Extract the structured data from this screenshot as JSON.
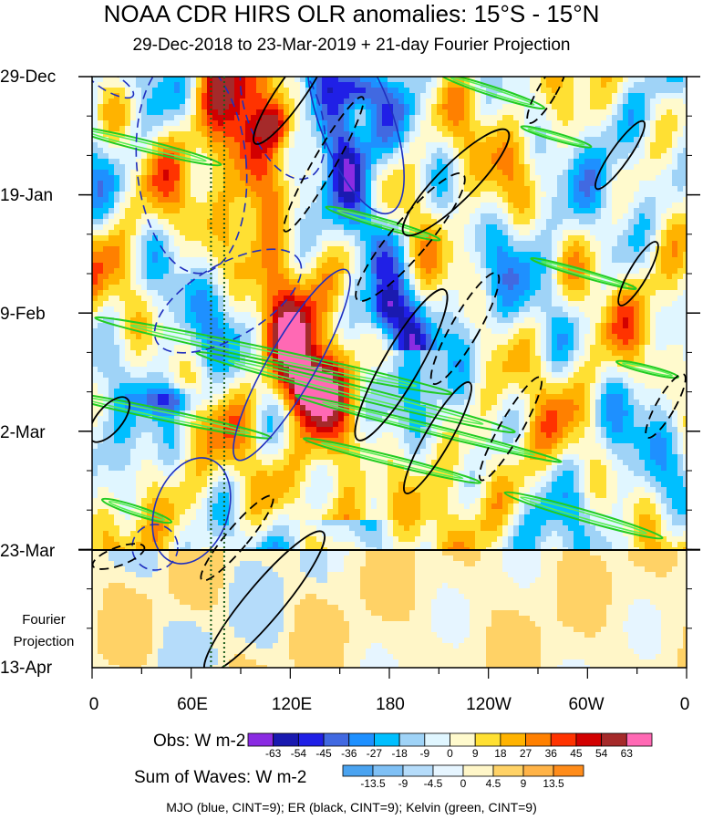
{
  "title": "NOAA CDR HIRS OLR anomalies: 15°S - 15°N",
  "subtitle": "29-Dec-2018 to 23-Mar-2019 + 21-day Fourier Projection",
  "fourier_label_line1": "Fourier",
  "fourier_label_line2": "Projection",
  "footer": "MJO (blue, CINT=9); ER (black, CINT=9); Kelvin (green, CINT=9)",
  "chart_data": {
    "type": "heatmap",
    "title": "NOAA CDR HIRS OLR anomalies: 15°S - 15°N",
    "subtitle": "29-Dec-2018 to 23-Mar-2019 + 21-day Fourier Projection",
    "x_ticks": [
      "0",
      "60E",
      "120E",
      "180",
      "120W",
      "60W",
      "0"
    ],
    "x_range_degrees": [
      0,
      360
    ],
    "y_ticks": [
      "29-Dec",
      "19-Jan",
      "9-Feb",
      "2-Mar",
      "23-Mar",
      "13-Apr"
    ],
    "y_range_days": [
      0,
      105
    ],
    "projection_start": "23-Mar",
    "obs_colorbar": {
      "label": "Obs: W m-2",
      "levels": [
        "-63",
        "-54",
        "-45",
        "-36",
        "-27",
        "-18",
        "-9",
        "0",
        "9",
        "18",
        "27",
        "36",
        "45",
        "54",
        "63"
      ],
      "colors": [
        "#8a2be2",
        "#1a1ab0",
        "#2020e6",
        "#4169e1",
        "#1e90ff",
        "#00bfff",
        "#9fd3f7",
        "#e0f6ff",
        "#fffacd",
        "#ffe033",
        "#ffb300",
        "#ff8000",
        "#ff3300",
        "#d20000",
        "#a52a2a",
        "#ff69b4"
      ]
    },
    "waves_colorbar": {
      "label": "Sum of Waves: W m-2",
      "levels": [
        "-13.5",
        "-9",
        "-4.5",
        "0",
        "4.5",
        "9",
        "13.5"
      ],
      "colors": [
        "#4aa3f0",
        "#7fc0f5",
        "#b5dcfa",
        "#e6f5ff",
        "#fff6c8",
        "#ffd266",
        "#ffb347",
        "#ff8c1a"
      ]
    },
    "features": [
      {
        "name": "Enhanced convection (negative OLR) band",
        "from_lon": 135,
        "from_day": 0,
        "to_lon": 190,
        "to_day": 45
      },
      {
        "name": "Suppressed convection (positive OLR) band",
        "from_lon": 80,
        "from_day": 5,
        "to_lon": 150,
        "to_day": 75
      },
      {
        "name": "Vertical reference lines",
        "lons": [
          72,
          80
        ]
      }
    ],
    "legend": "MJO (blue, CINT=9); ER (black, CINT=9); Kelvin (green, CINT=9)"
  }
}
